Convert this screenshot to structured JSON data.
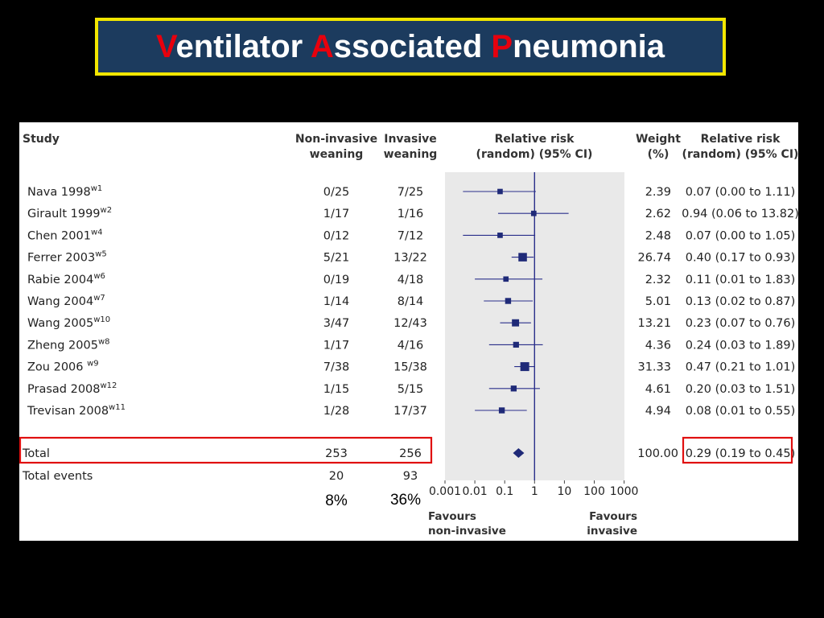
{
  "slide": {
    "title_parts": [
      {
        "cap": "V",
        "rest": "entilator "
      },
      {
        "cap": "A",
        "rest": "ssociated "
      },
      {
        "cap": "P",
        "rest": "neumonia"
      }
    ],
    "colors": {
      "background": "#000000",
      "title_box": "#1c3b5e",
      "title_border": "#f2e600",
      "title_cap": "#e8000d",
      "marker": "#1f2a78",
      "highlight": "#e01010"
    }
  },
  "chart_data": {
    "type": "forest",
    "x_scale": "log",
    "xlim": [
      0.001,
      1000
    ],
    "reference_line": 1,
    "headers": {
      "study": "Study",
      "noninvasive": [
        "Non-invasive",
        "weaning"
      ],
      "invasive": [
        "Invasive",
        "weaning"
      ],
      "rr": [
        "Relative risk",
        "(random) (95% CI)"
      ],
      "weight": [
        "Weight",
        "(%)"
      ],
      "rr_text": [
        "Relative risk",
        "(random) (95% CI)"
      ]
    },
    "studies": [
      {
        "name": "Nava 1998",
        "ref": "w1",
        "noninvasive": "0/25",
        "invasive": "7/25",
        "rr": 0.07,
        "lo": 0.004,
        "hi": 1.11,
        "weight": "2.39",
        "ci_text": "0.07 (0.00 to 1.11)"
      },
      {
        "name": "Girault 1999",
        "ref": "w2",
        "noninvasive": "1/17",
        "invasive": "1/16",
        "rr": 0.94,
        "lo": 0.06,
        "hi": 13.82,
        "weight": "2.62",
        "ci_text": "0.94 (0.06 to 13.82)"
      },
      {
        "name": "Chen 2001",
        "ref": "w4",
        "noninvasive": "0/12",
        "invasive": "7/12",
        "rr": 0.07,
        "lo": 0.004,
        "hi": 1.05,
        "weight": "2.48",
        "ci_text": "0.07 (0.00 to 1.05)"
      },
      {
        "name": "Ferrer 2003",
        "ref": "w5",
        "noninvasive": "5/21",
        "invasive": "13/22",
        "rr": 0.4,
        "lo": 0.17,
        "hi": 0.93,
        "weight": "26.74",
        "ci_text": "0.40 (0.17 to 0.93)"
      },
      {
        "name": "Rabie 2004",
        "ref": "w6",
        "noninvasive": "0/19",
        "invasive": "4/18",
        "rr": 0.11,
        "lo": 0.01,
        "hi": 1.83,
        "weight": "2.32",
        "ci_text": "0.11 (0.01 to 1.83)"
      },
      {
        "name": "Wang 2004",
        "ref": "w7",
        "noninvasive": "1/14",
        "invasive": "8/14",
        "rr": 0.13,
        "lo": 0.02,
        "hi": 0.87,
        "weight": "5.01",
        "ci_text": "0.13 (0.02 to 0.87)"
      },
      {
        "name": "Wang 2005",
        "ref": "w10",
        "noninvasive": "3/47",
        "invasive": "12/43",
        "rr": 0.23,
        "lo": 0.07,
        "hi": 0.76,
        "weight": "13.21",
        "ci_text": "0.23 (0.07 to 0.76)"
      },
      {
        "name": "Zheng 2005",
        "ref": "w8",
        "noninvasive": "1/17",
        "invasive": "4/16",
        "rr": 0.24,
        "lo": 0.03,
        "hi": 1.89,
        "weight": "4.36",
        "ci_text": "0.24 (0.03 to 1.89)"
      },
      {
        "name": "Zou 2006 ",
        "ref": "w9",
        "noninvasive": "7/38",
        "invasive": "15/38",
        "rr": 0.47,
        "lo": 0.21,
        "hi": 1.01,
        "weight": "31.33",
        "ci_text": "0.47 (0.21 to 1.01)"
      },
      {
        "name": "Prasad 2008",
        "ref": "w12",
        "noninvasive": "1/15",
        "invasive": "5/15",
        "rr": 0.2,
        "lo": 0.03,
        "hi": 1.51,
        "weight": "4.61",
        "ci_text": "0.20 (0.03 to 1.51)"
      },
      {
        "name": "Trevisan 2008",
        "ref": "w11",
        "noninvasive": "1/28",
        "invasive": "17/37",
        "rr": 0.08,
        "lo": 0.01,
        "hi": 0.55,
        "weight": "4.94",
        "ci_text": "0.08 (0.01 to 0.55)"
      }
    ],
    "total": {
      "label": "Total",
      "noninvasive": "253",
      "invasive": "256",
      "rr": 0.29,
      "lo": 0.19,
      "hi": 0.45,
      "weight": "100.00",
      "ci_text": "0.29 (0.19 to 0.45)"
    },
    "total_events": {
      "label": "Total events",
      "noninvasive": "20",
      "invasive": "93"
    },
    "percentages": {
      "noninvasive": "8%",
      "invasive": "36%"
    },
    "x_ticks": [
      {
        "value": 0.001,
        "label": "0.001"
      },
      {
        "value": 0.01,
        "label": "0.01"
      },
      {
        "value": 0.1,
        "label": "0.1"
      },
      {
        "value": 1,
        "label": "1"
      },
      {
        "value": 10,
        "label": "10"
      },
      {
        "value": 100,
        "label": "100"
      },
      {
        "value": 1000,
        "label": "1000"
      }
    ],
    "favours_left": [
      "Favours",
      "non-invasive"
    ],
    "favours_right": [
      "Favours",
      "invasive"
    ]
  }
}
